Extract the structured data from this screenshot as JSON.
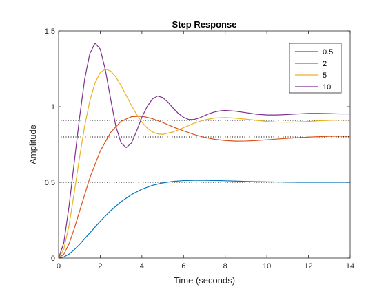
{
  "chart_data": {
    "type": "line",
    "title": "Step Response",
    "xlabel": "Time (seconds)",
    "ylabel": "Amplitude",
    "xlim": [
      0,
      14
    ],
    "ylim": [
      0,
      1.5
    ],
    "xticks": [
      0,
      2,
      4,
      6,
      8,
      10,
      12,
      14
    ],
    "xtick_labels": [
      "0",
      "2",
      "4",
      "6",
      "8",
      "10",
      "12",
      "14"
    ],
    "yticks": [
      0,
      0.5,
      1,
      1.5
    ],
    "ytick_labels": [
      "0",
      "0.5",
      "1",
      "1.5"
    ],
    "grid": false,
    "legend_position": "top-right",
    "steady_state_reference_lines": [
      0.5,
      0.8,
      0.909,
      0.952
    ],
    "series": [
      {
        "name": "0.5",
        "color": "#0072BD",
        "x": [
          0,
          0.25,
          0.5,
          0.75,
          1,
          1.5,
          2,
          2.5,
          3,
          3.5,
          4,
          4.5,
          5,
          5.5,
          6,
          6.5,
          7,
          7.5,
          8,
          8.5,
          9,
          9.5,
          10,
          10.5,
          11,
          11.5,
          12,
          12.5,
          13,
          13.5,
          14
        ],
        "y": [
          0,
          0.007,
          0.026,
          0.055,
          0.089,
          0.166,
          0.243,
          0.313,
          0.372,
          0.419,
          0.455,
          0.48,
          0.496,
          0.506,
          0.511,
          0.513,
          0.513,
          0.512,
          0.51,
          0.508,
          0.506,
          0.504,
          0.503,
          0.502,
          0.501,
          0.5,
          0.5,
          0.5,
          0.5,
          0.5,
          0.5
        ]
      },
      {
        "name": "2",
        "color": "#D95319",
        "x": [
          0,
          0.25,
          0.5,
          0.75,
          1,
          1.5,
          2,
          2.5,
          3,
          3.5,
          4,
          4.5,
          5,
          5.5,
          6,
          6.5,
          7,
          7.5,
          8,
          8.5,
          9,
          9.5,
          10,
          10.5,
          11,
          11.5,
          12,
          12.5,
          13,
          13.5,
          14
        ],
        "y": [
          0,
          0.025,
          0.094,
          0.193,
          0.306,
          0.529,
          0.707,
          0.83,
          0.903,
          0.934,
          0.937,
          0.921,
          0.895,
          0.866,
          0.84,
          0.816,
          0.797,
          0.784,
          0.776,
          0.772,
          0.773,
          0.776,
          0.781,
          0.786,
          0.791,
          0.795,
          0.799,
          0.802,
          0.804,
          0.805,
          0.805
        ]
      },
      {
        "name": "5",
        "color": "#EDB120",
        "x": [
          0,
          0.25,
          0.5,
          0.75,
          1,
          1.25,
          1.5,
          1.75,
          2,
          2.25,
          2.5,
          2.75,
          3,
          3.25,
          3.5,
          3.75,
          4,
          4.25,
          4.5,
          4.75,
          5,
          5.5,
          6,
          6.5,
          7,
          7.5,
          8,
          8.5,
          9,
          9.5,
          10,
          10.5,
          11,
          11.5,
          12,
          12.5,
          13,
          13.5,
          14
        ],
        "y": [
          0,
          0.058,
          0.215,
          0.43,
          0.66,
          0.87,
          1.039,
          1.157,
          1.225,
          1.248,
          1.235,
          1.196,
          1.139,
          1.074,
          1.008,
          0.948,
          0.898,
          0.859,
          0.833,
          0.82,
          0.817,
          0.833,
          0.861,
          0.89,
          0.912,
          0.925,
          0.928,
          0.924,
          0.917,
          0.909,
          0.902,
          0.898,
          0.897,
          0.899,
          0.902,
          0.906,
          0.909,
          0.911,
          0.911
        ]
      },
      {
        "name": "10",
        "color": "#7E2F8E",
        "x": [
          0,
          0.25,
          0.5,
          0.75,
          1,
          1.25,
          1.5,
          1.75,
          2,
          2.25,
          2.5,
          2.75,
          3,
          3.25,
          3.5,
          3.75,
          4,
          4.25,
          4.5,
          4.75,
          5,
          5.25,
          5.5,
          5.75,
          6,
          6.25,
          6.5,
          6.75,
          7,
          7.25,
          7.5,
          7.75,
          8,
          8.5,
          9,
          9.5,
          10,
          10.5,
          11,
          11.5,
          12,
          12.5,
          13,
          13.5,
          14
        ],
        "y": [
          0,
          0.1,
          0.34,
          0.63,
          0.92,
          1.18,
          1.35,
          1.42,
          1.38,
          1.24,
          1.05,
          0.87,
          0.76,
          0.73,
          0.76,
          0.84,
          0.93,
          1.0,
          1.05,
          1.07,
          1.06,
          1.03,
          0.99,
          0.955,
          0.93,
          0.915,
          0.915,
          0.925,
          0.94,
          0.955,
          0.965,
          0.972,
          0.975,
          0.97,
          0.96,
          0.95,
          0.945,
          0.945,
          0.948,
          0.952,
          0.955,
          0.955,
          0.954,
          0.952,
          0.952
        ]
      }
    ]
  }
}
